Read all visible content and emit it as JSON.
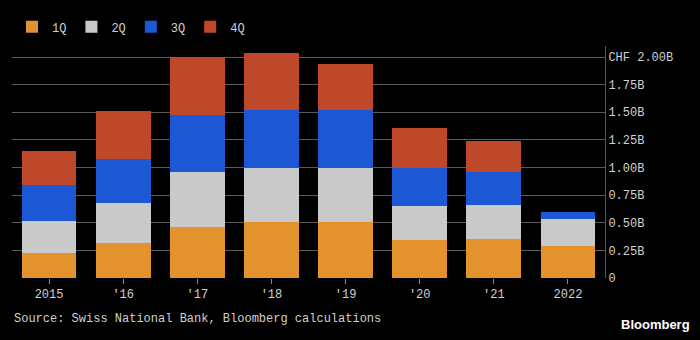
{
  "chart_data": {
    "type": "bar",
    "stacked": true,
    "grid": true,
    "legend": "top-left",
    "categories": [
      "2015",
      "'16",
      "'17",
      "'18",
      "'19",
      "'20",
      "'21",
      "2022"
    ],
    "series": [
      {
        "name": "1Q",
        "color": "#e3922e",
        "values": [
          0.23,
          0.32,
          0.46,
          0.51,
          0.51,
          0.34,
          0.35,
          0.29
        ]
      },
      {
        "name": "2Q",
        "color": "#c9c9c9",
        "values": [
          0.29,
          0.36,
          0.5,
          0.49,
          0.49,
          0.31,
          0.31,
          0.24
        ]
      },
      {
        "name": "3Q",
        "color": "#1c58d4",
        "values": [
          0.32,
          0.4,
          0.52,
          0.52,
          0.52,
          0.35,
          0.3,
          0.07
        ]
      },
      {
        "name": "4Q",
        "color": "#c0482a",
        "values": [
          0.31,
          0.43,
          0.52,
          0.52,
          0.42,
          0.36,
          0.28,
          null
        ]
      }
    ],
    "ylim": [
      0,
      2.1
    ],
    "yticks": [
      0,
      {
        "value": 0.25,
        "label": "0.25B"
      },
      {
        "value": 0.5,
        "label": "0.50B"
      },
      {
        "value": 0.75,
        "label": "0.75B"
      },
      {
        "value": 1,
        "label": "1.00B"
      },
      {
        "value": 1.25,
        "label": "1.25B"
      },
      {
        "value": 1.5,
        "label": "1.50B"
      },
      {
        "value": 1.75,
        "label": "1.75B"
      },
      {
        "value": 2,
        "label": "CHF 2.00B"
      }
    ],
    "annotations": [
      "Source: Swiss National Bank, Bloomberg calculations",
      "Bloomberg"
    ]
  }
}
